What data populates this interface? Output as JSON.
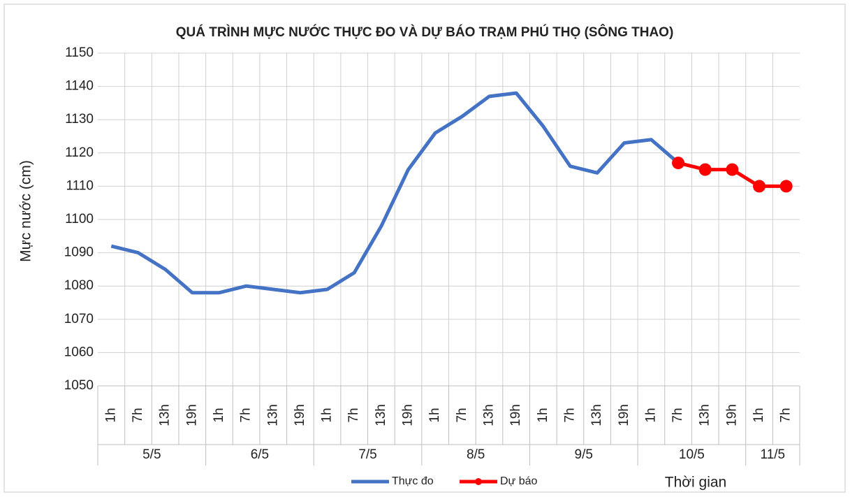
{
  "chart_data": {
    "type": "line",
    "title": "QUÁ TRÌNH MỰC NƯỚC THỰC ĐO VÀ DỰ BÁO TRẠM PHÚ THỌ (SÔNG THAO)",
    "y_label": "Mực nước (cm)",
    "x_label": "Thời gian",
    "categories": [
      "1h",
      "7h",
      "13h",
      "19h",
      "1h",
      "7h",
      "13h",
      "19h",
      "1h",
      "7h",
      "13h",
      "19h",
      "1h",
      "7h",
      "13h",
      "19h",
      "1h",
      "7h",
      "13h",
      "19h",
      "1h",
      "7h",
      "13h",
      "19h",
      "1h",
      "7h"
    ],
    "category_groups": [
      "5/5",
      "5/5",
      "5/5",
      "5/5",
      "6/5",
      "6/5",
      "6/5",
      "6/5",
      "7/5",
      "7/5",
      "7/5",
      "7/5",
      "8/5",
      "8/5",
      "8/5",
      "8/5",
      "9/5",
      "9/5",
      "9/5",
      "9/5",
      "10/5",
      "10/5",
      "10/5",
      "10/5",
      "11/5",
      "11/5"
    ],
    "series": [
      {
        "name": "Thực đo",
        "color": "#4472c4",
        "marker": false,
        "values": [
          1092,
          1090,
          1085,
          1078,
          1078,
          1080,
          1079,
          1078,
          1079,
          1084,
          1098,
          1115,
          1126,
          1131,
          1137,
          1138,
          1128,
          1116,
          1114,
          1123,
          1124,
          1117,
          null,
          null,
          null,
          null
        ]
      },
      {
        "name": "Dự báo",
        "color": "#ff0000",
        "marker": true,
        "values": [
          null,
          null,
          null,
          null,
          null,
          null,
          null,
          null,
          null,
          null,
          null,
          null,
          null,
          null,
          null,
          null,
          null,
          null,
          null,
          null,
          null,
          1117,
          1115,
          1115,
          1110,
          1110
        ]
      }
    ],
    "ylim": [
      1050,
      1150
    ],
    "yticks": [
      1050,
      1060,
      1070,
      1080,
      1090,
      1100,
      1110,
      1120,
      1130,
      1140,
      1150
    ],
    "grid": true,
    "legend": "bottom"
  }
}
